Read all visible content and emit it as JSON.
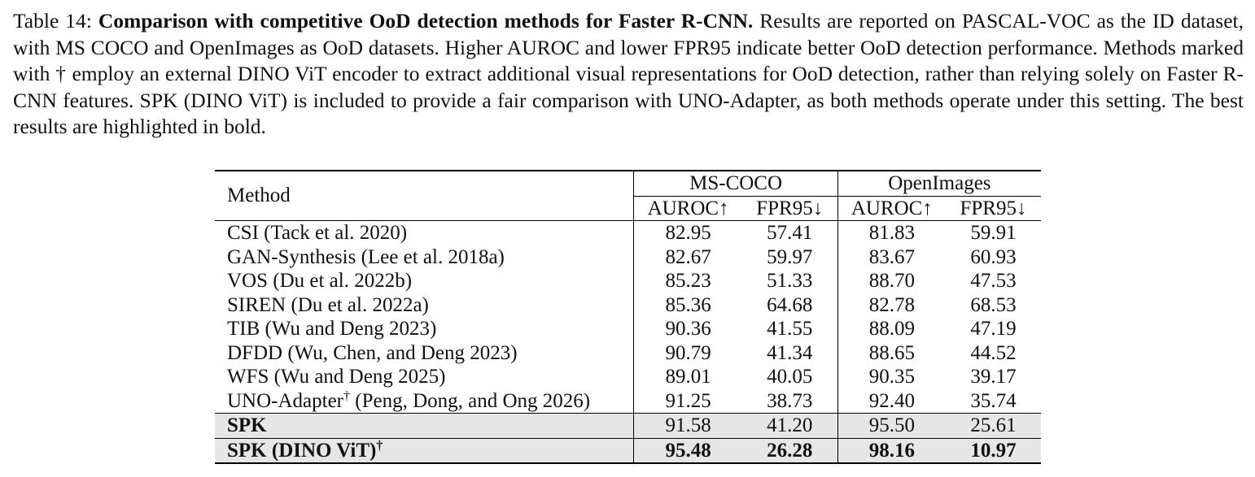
{
  "caption": {
    "label": "Table 14:",
    "title": "Comparison with competitive OoD detection methods for Faster R-CNN.",
    "text": "Results are reported on PASCAL-VOC as the ID dataset, with MS COCO and OpenImages as OoD datasets. Higher AUROC and lower FPR95 indicate better OoD detection performance. Methods marked with † employ an external DINO ViT encoder to extract additional visual representations for OoD detection, rather than relying solely on Faster R-CNN features. SPK (DINO ViT) is included to provide a fair comparison with UNO-Adapter, as both methods operate under this setting. The best results are highlighted in bold."
  },
  "table": {
    "method_header": "Method",
    "groups": [
      {
        "name": "MS-COCO",
        "cols": [
          "AUROC↑",
          "FPR95↓"
        ]
      },
      {
        "name": "OpenImages",
        "cols": [
          "AUROC↑",
          "FPR95↓"
        ]
      }
    ],
    "rows": [
      {
        "method": "CSI (Tack et al. 2020)",
        "sup": "",
        "values": [
          "82.95",
          "57.41",
          "81.83",
          "59.91"
        ]
      },
      {
        "method": "GAN-Synthesis (Lee et al. 2018a)",
        "sup": "",
        "values": [
          "82.67",
          "59.97",
          "83.67",
          "60.93"
        ]
      },
      {
        "method": "VOS (Du et al. 2022b)",
        "sup": "",
        "values": [
          "85.23",
          "51.33",
          "88.70",
          "47.53"
        ]
      },
      {
        "method": "SIREN (Du et al. 2022a)",
        "sup": "",
        "values": [
          "85.36",
          "64.68",
          "82.78",
          "68.53"
        ]
      },
      {
        "method": "TIB (Wu and Deng 2023)",
        "sup": "",
        "values": [
          "90.36",
          "41.55",
          "88.09",
          "47.19"
        ]
      },
      {
        "method": "DFDD (Wu, Chen, and Deng 2023)",
        "sup": "",
        "values": [
          "90.79",
          "41.34",
          "88.65",
          "44.52"
        ]
      },
      {
        "method": "WFS (Wu and Deng 2025)",
        "sup": "",
        "values": [
          "89.01",
          "40.05",
          "90.35",
          "39.17"
        ]
      },
      {
        "method": "UNO-Adapter",
        "sup": "†",
        "method_suffix": " (Peng, Dong, and Ong 2026)",
        "values": [
          "91.25",
          "38.73",
          "92.40",
          "35.74"
        ]
      },
      {
        "method": "SPK",
        "sup": "",
        "values": [
          "91.58",
          "41.20",
          "95.50",
          "25.61"
        ]
      },
      {
        "method": "SPK (DINO ViT)",
        "sup": "†",
        "values": [
          "95.48",
          "26.28",
          "98.16",
          "10.97"
        ]
      }
    ]
  }
}
